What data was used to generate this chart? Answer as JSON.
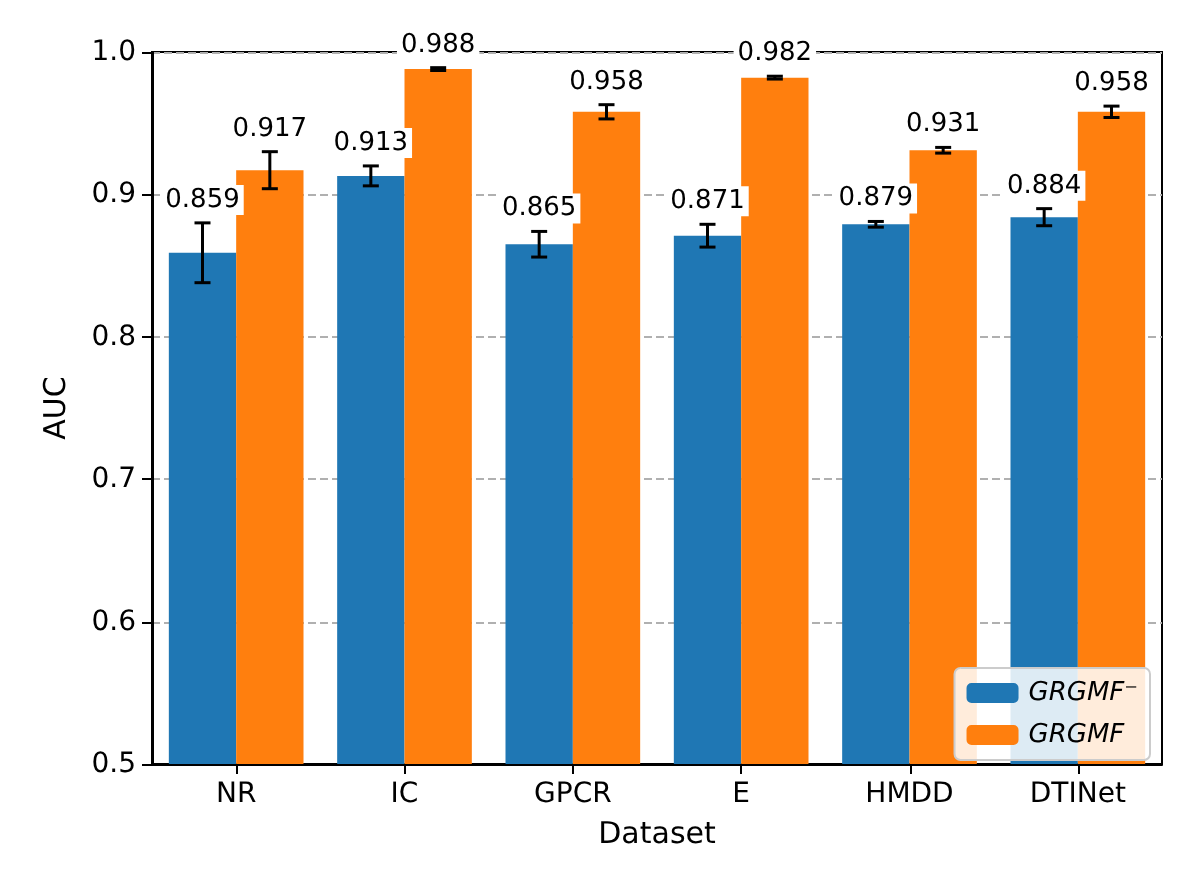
{
  "chart_data": {
    "type": "bar",
    "xlabel": "Dataset",
    "ylabel": "AUC",
    "categories": [
      "NR",
      "IC",
      "GPCR",
      "E",
      "HMDD",
      "DTINet"
    ],
    "series": [
      {
        "name": "GRGMF⁻",
        "color": "#1f77b4",
        "values": [
          0.859,
          0.913,
          0.865,
          0.871,
          0.879,
          0.884
        ],
        "errors": [
          0.021,
          0.007,
          0.009,
          0.008,
          0.002,
          0.006
        ]
      },
      {
        "name": "GRGMF",
        "color": "#ff7f0e",
        "values": [
          0.917,
          0.988,
          0.958,
          0.982,
          0.931,
          0.958
        ],
        "errors": [
          0.013,
          0.001,
          0.005,
          0.001,
          0.002,
          0.004
        ]
      }
    ],
    "ylim": [
      0.5,
      1.0
    ],
    "yticks": [
      0.5,
      0.6,
      0.7,
      0.8,
      0.9,
      {
        "value": 1,
        "label": "1.0"
      }
    ],
    "grid": "y",
    "legend": "bottom right",
    "data_labels": true
  }
}
